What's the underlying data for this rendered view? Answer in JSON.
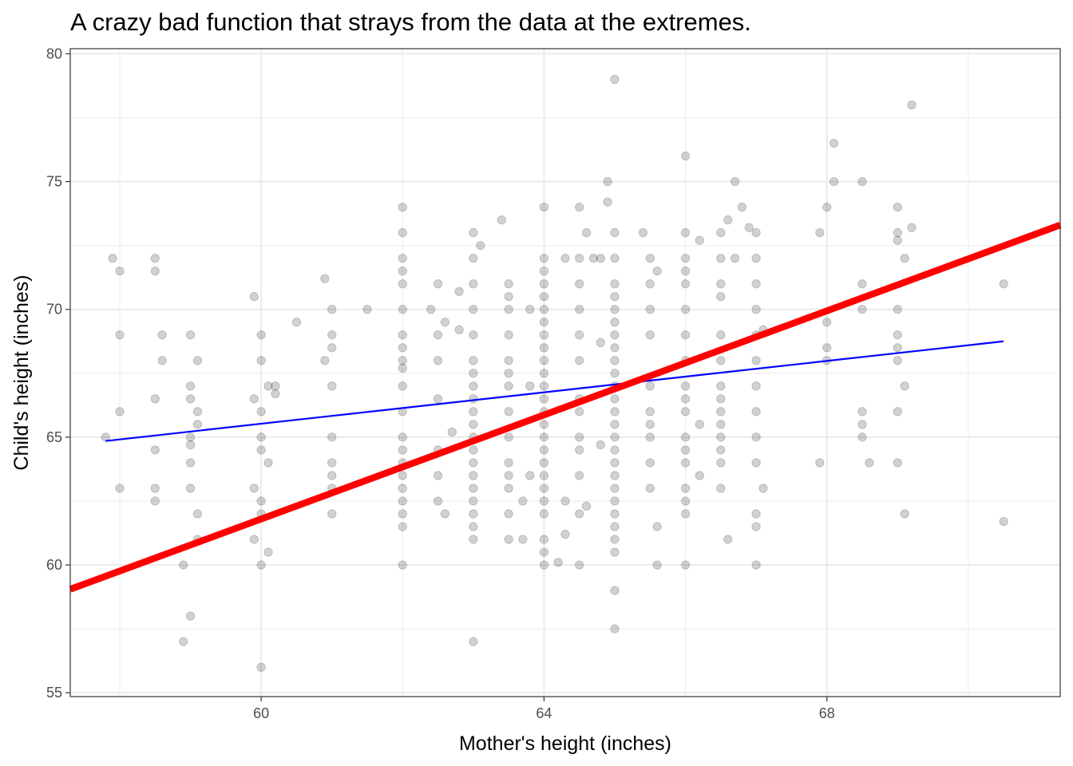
{
  "chart_data": {
    "type": "scatter",
    "title": "A crazy bad function that strays  from the data at the extremes.",
    "xlabel": "Mother's height  (inches)",
    "ylabel": "Child's height (inches)",
    "xlim": [
      57.3,
      71.3
    ],
    "ylim": [
      54.85,
      80.2
    ],
    "x_ticks": [
      60,
      64,
      68
    ],
    "y_ticks": [
      55,
      60,
      65,
      70,
      75,
      80
    ],
    "grid": true,
    "colors": {
      "points": "#000000",
      "fit_line": "#0000ff",
      "bad_line": "#ff0000",
      "grid": "#ebebeb"
    },
    "points": [
      {
        "x": 57.9,
        "y": 72
      },
      {
        "x": 58,
        "y": 71.5
      },
      {
        "x": 58,
        "y": 69
      },
      {
        "x": 58,
        "y": 66
      },
      {
        "x": 57.8,
        "y": 65
      },
      {
        "x": 58,
        "y": 63
      },
      {
        "x": 58.5,
        "y": 72
      },
      {
        "x": 58.5,
        "y": 71.5
      },
      {
        "x": 58.6,
        "y": 69
      },
      {
        "x": 58.6,
        "y": 68
      },
      {
        "x": 58.5,
        "y": 66.5
      },
      {
        "x": 58.5,
        "y": 64.5
      },
      {
        "x": 58.5,
        "y": 63
      },
      {
        "x": 58.5,
        "y": 62.5
      },
      {
        "x": 59,
        "y": 69
      },
      {
        "x": 59.1,
        "y": 68
      },
      {
        "x": 59,
        "y": 67
      },
      {
        "x": 59,
        "y": 66.5
      },
      {
        "x": 59.1,
        "y": 66
      },
      {
        "x": 59.1,
        "y": 65.5
      },
      {
        "x": 59,
        "y": 65
      },
      {
        "x": 59,
        "y": 64.7
      },
      {
        "x": 59,
        "y": 64
      },
      {
        "x": 59,
        "y": 63
      },
      {
        "x": 59.1,
        "y": 62
      },
      {
        "x": 59.1,
        "y": 61
      },
      {
        "x": 58.9,
        "y": 60
      },
      {
        "x": 59,
        "y": 58
      },
      {
        "x": 58.9,
        "y": 57
      },
      {
        "x": 59.9,
        "y": 70.5
      },
      {
        "x": 60,
        "y": 69
      },
      {
        "x": 60,
        "y": 68
      },
      {
        "x": 60.1,
        "y": 67
      },
      {
        "x": 59.9,
        "y": 66.5
      },
      {
        "x": 60,
        "y": 66
      },
      {
        "x": 60,
        "y": 65
      },
      {
        "x": 60,
        "y": 64.5
      },
      {
        "x": 60.1,
        "y": 64
      },
      {
        "x": 59.9,
        "y": 63
      },
      {
        "x": 60,
        "y": 62.5
      },
      {
        "x": 60,
        "y": 62
      },
      {
        "x": 59.9,
        "y": 61
      },
      {
        "x": 60.1,
        "y": 60.5
      },
      {
        "x": 60,
        "y": 60
      },
      {
        "x": 60,
        "y": 56
      },
      {
        "x": 60.2,
        "y": 67
      },
      {
        "x": 60.2,
        "y": 66.7
      },
      {
        "x": 60.5,
        "y": 69.5
      },
      {
        "x": 60.9,
        "y": 71.2
      },
      {
        "x": 61,
        "y": 70
      },
      {
        "x": 61,
        "y": 69
      },
      {
        "x": 61,
        "y": 68.5
      },
      {
        "x": 60.9,
        "y": 68
      },
      {
        "x": 61,
        "y": 67
      },
      {
        "x": 61,
        "y": 65
      },
      {
        "x": 61,
        "y": 64
      },
      {
        "x": 61,
        "y": 63.5
      },
      {
        "x": 61,
        "y": 63
      },
      {
        "x": 61,
        "y": 62
      },
      {
        "x": 61.5,
        "y": 70
      },
      {
        "x": 62,
        "y": 74
      },
      {
        "x": 62,
        "y": 73
      },
      {
        "x": 62,
        "y": 72
      },
      {
        "x": 62,
        "y": 71.5
      },
      {
        "x": 62,
        "y": 71
      },
      {
        "x": 62,
        "y": 70
      },
      {
        "x": 62,
        "y": 69
      },
      {
        "x": 62,
        "y": 68.5
      },
      {
        "x": 62,
        "y": 68
      },
      {
        "x": 62,
        "y": 67.7
      },
      {
        "x": 62,
        "y": 67
      },
      {
        "x": 62,
        "y": 66
      },
      {
        "x": 62,
        "y": 65
      },
      {
        "x": 62,
        "y": 64.5
      },
      {
        "x": 62,
        "y": 64
      },
      {
        "x": 62,
        "y": 63.5
      },
      {
        "x": 62,
        "y": 63
      },
      {
        "x": 62,
        "y": 62.5
      },
      {
        "x": 62,
        "y": 62
      },
      {
        "x": 62,
        "y": 61.5
      },
      {
        "x": 62,
        "y": 60
      },
      {
        "x": 62.4,
        "y": 70
      },
      {
        "x": 62.5,
        "y": 71
      },
      {
        "x": 62.6,
        "y": 69.5
      },
      {
        "x": 62.5,
        "y": 69
      },
      {
        "x": 62.5,
        "y": 68
      },
      {
        "x": 62.5,
        "y": 66.5
      },
      {
        "x": 62.5,
        "y": 64.5
      },
      {
        "x": 62.5,
        "y": 63.5
      },
      {
        "x": 62.5,
        "y": 62.5
      },
      {
        "x": 62.6,
        "y": 62
      },
      {
        "x": 62.7,
        "y": 65.2
      },
      {
        "x": 62.8,
        "y": 69.2
      },
      {
        "x": 62.8,
        "y": 70.7
      },
      {
        "x": 63,
        "y": 73
      },
      {
        "x": 63,
        "y": 72
      },
      {
        "x": 63,
        "y": 71
      },
      {
        "x": 63,
        "y": 70
      },
      {
        "x": 63,
        "y": 69
      },
      {
        "x": 63,
        "y": 68
      },
      {
        "x": 63,
        "y": 67.5
      },
      {
        "x": 63,
        "y": 67
      },
      {
        "x": 63,
        "y": 66.5
      },
      {
        "x": 63,
        "y": 66
      },
      {
        "x": 63,
        "y": 65.5
      },
      {
        "x": 63,
        "y": 65
      },
      {
        "x": 63,
        "y": 64.5
      },
      {
        "x": 63,
        "y": 64
      },
      {
        "x": 63,
        "y": 63.5
      },
      {
        "x": 63,
        "y": 63
      },
      {
        "x": 63,
        "y": 62.5
      },
      {
        "x": 63,
        "y": 62
      },
      {
        "x": 63,
        "y": 61.5
      },
      {
        "x": 63,
        "y": 61
      },
      {
        "x": 63,
        "y": 57
      },
      {
        "x": 63.1,
        "y": 72.5
      },
      {
        "x": 63.4,
        "y": 73.5
      },
      {
        "x": 63.5,
        "y": 71
      },
      {
        "x": 63.5,
        "y": 70.5
      },
      {
        "x": 63.5,
        "y": 70
      },
      {
        "x": 63.5,
        "y": 69
      },
      {
        "x": 63.5,
        "y": 68
      },
      {
        "x": 63.5,
        "y": 67.5
      },
      {
        "x": 63.5,
        "y": 67
      },
      {
        "x": 63.5,
        "y": 66
      },
      {
        "x": 63.5,
        "y": 65
      },
      {
        "x": 63.5,
        "y": 64
      },
      {
        "x": 63.5,
        "y": 63.5
      },
      {
        "x": 63.5,
        "y": 63
      },
      {
        "x": 63.5,
        "y": 62
      },
      {
        "x": 63.5,
        "y": 61
      },
      {
        "x": 63.7,
        "y": 62.5
      },
      {
        "x": 63.7,
        "y": 61
      },
      {
        "x": 63.8,
        "y": 63.5
      },
      {
        "x": 63.8,
        "y": 70
      },
      {
        "x": 63.8,
        "y": 67
      },
      {
        "x": 64,
        "y": 74
      },
      {
        "x": 64,
        "y": 72
      },
      {
        "x": 64,
        "y": 71.5
      },
      {
        "x": 64,
        "y": 71
      },
      {
        "x": 64,
        "y": 70.5
      },
      {
        "x": 64,
        "y": 70
      },
      {
        "x": 64,
        "y": 69.5
      },
      {
        "x": 64,
        "y": 69
      },
      {
        "x": 64,
        "y": 68.5
      },
      {
        "x": 64,
        "y": 68
      },
      {
        "x": 64,
        "y": 67.5
      },
      {
        "x": 64,
        "y": 67
      },
      {
        "x": 64,
        "y": 66.5
      },
      {
        "x": 64,
        "y": 66
      },
      {
        "x": 64,
        "y": 65.5
      },
      {
        "x": 64,
        "y": 65
      },
      {
        "x": 64,
        "y": 64.5
      },
      {
        "x": 64,
        "y": 64
      },
      {
        "x": 64,
        "y": 63.5
      },
      {
        "x": 64,
        "y": 63
      },
      {
        "x": 64,
        "y": 62.5
      },
      {
        "x": 64,
        "y": 62
      },
      {
        "x": 64,
        "y": 61
      },
      {
        "x": 64,
        "y": 60.5
      },
      {
        "x": 64,
        "y": 60
      },
      {
        "x": 64.2,
        "y": 60.1
      },
      {
        "x": 64.3,
        "y": 62.5
      },
      {
        "x": 64.3,
        "y": 61.2
      },
      {
        "x": 64.3,
        "y": 72
      },
      {
        "x": 64.5,
        "y": 74
      },
      {
        "x": 64.5,
        "y": 72
      },
      {
        "x": 64.5,
        "y": 71
      },
      {
        "x": 64.5,
        "y": 70
      },
      {
        "x": 64.5,
        "y": 69
      },
      {
        "x": 64.5,
        "y": 68
      },
      {
        "x": 64.5,
        "y": 66.5
      },
      {
        "x": 64.5,
        "y": 66
      },
      {
        "x": 64.5,
        "y": 65
      },
      {
        "x": 64.5,
        "y": 64.5
      },
      {
        "x": 64.5,
        "y": 63.5
      },
      {
        "x": 64.5,
        "y": 62
      },
      {
        "x": 64.5,
        "y": 60
      },
      {
        "x": 64.6,
        "y": 73
      },
      {
        "x": 64.6,
        "y": 62.3
      },
      {
        "x": 64.7,
        "y": 72
      },
      {
        "x": 64.8,
        "y": 72
      },
      {
        "x": 64.8,
        "y": 68.7
      },
      {
        "x": 64.8,
        "y": 64.7
      },
      {
        "x": 64.9,
        "y": 74.2
      },
      {
        "x": 65,
        "y": 79
      },
      {
        "x": 65,
        "y": 73
      },
      {
        "x": 65,
        "y": 72
      },
      {
        "x": 65,
        "y": 71
      },
      {
        "x": 65,
        "y": 70.5
      },
      {
        "x": 65,
        "y": 70
      },
      {
        "x": 65,
        "y": 69.5
      },
      {
        "x": 65,
        "y": 69
      },
      {
        "x": 65,
        "y": 68.5
      },
      {
        "x": 65,
        "y": 68
      },
      {
        "x": 65,
        "y": 67.5
      },
      {
        "x": 65,
        "y": 67
      },
      {
        "x": 65,
        "y": 66.5
      },
      {
        "x": 65,
        "y": 66
      },
      {
        "x": 65,
        "y": 65.5
      },
      {
        "x": 65,
        "y": 65
      },
      {
        "x": 65,
        "y": 64.5
      },
      {
        "x": 65,
        "y": 64
      },
      {
        "x": 65,
        "y": 63.5
      },
      {
        "x": 65,
        "y": 63
      },
      {
        "x": 65,
        "y": 62.5
      },
      {
        "x": 65,
        "y": 62
      },
      {
        "x": 65,
        "y": 61.5
      },
      {
        "x": 65,
        "y": 61
      },
      {
        "x": 65,
        "y": 60.5
      },
      {
        "x": 65,
        "y": 59
      },
      {
        "x": 65,
        "y": 57.5
      },
      {
        "x": 64.9,
        "y": 75
      },
      {
        "x": 65.4,
        "y": 73
      },
      {
        "x": 65.5,
        "y": 72
      },
      {
        "x": 65.5,
        "y": 71
      },
      {
        "x": 65.5,
        "y": 70
      },
      {
        "x": 65.5,
        "y": 69
      },
      {
        "x": 65.5,
        "y": 67
      },
      {
        "x": 65.5,
        "y": 66
      },
      {
        "x": 65.5,
        "y": 65.5
      },
      {
        "x": 65.5,
        "y": 65
      },
      {
        "x": 65.5,
        "y": 64
      },
      {
        "x": 65.5,
        "y": 63
      },
      {
        "x": 65.6,
        "y": 61.5
      },
      {
        "x": 65.6,
        "y": 60
      },
      {
        "x": 65.6,
        "y": 71.5
      },
      {
        "x": 66,
        "y": 76
      },
      {
        "x": 66,
        "y": 73
      },
      {
        "x": 66,
        "y": 72
      },
      {
        "x": 66,
        "y": 71.5
      },
      {
        "x": 66,
        "y": 71
      },
      {
        "x": 66,
        "y": 70
      },
      {
        "x": 66,
        "y": 69
      },
      {
        "x": 66,
        "y": 68
      },
      {
        "x": 66,
        "y": 67
      },
      {
        "x": 66,
        "y": 66.5
      },
      {
        "x": 66,
        "y": 66
      },
      {
        "x": 66,
        "y": 65
      },
      {
        "x": 66,
        "y": 64.5
      },
      {
        "x": 66,
        "y": 64
      },
      {
        "x": 66,
        "y": 63
      },
      {
        "x": 66,
        "y": 62.5
      },
      {
        "x": 66,
        "y": 62
      },
      {
        "x": 66,
        "y": 60
      },
      {
        "x": 66.2,
        "y": 72.7
      },
      {
        "x": 66.2,
        "y": 65.5
      },
      {
        "x": 66.2,
        "y": 63.5
      },
      {
        "x": 66.5,
        "y": 73
      },
      {
        "x": 66.5,
        "y": 72
      },
      {
        "x": 66.5,
        "y": 71
      },
      {
        "x": 66.5,
        "y": 70.5
      },
      {
        "x": 66.5,
        "y": 69
      },
      {
        "x": 66.5,
        "y": 68
      },
      {
        "x": 66.5,
        "y": 67
      },
      {
        "x": 66.5,
        "y": 66.5
      },
      {
        "x": 66.5,
        "y": 66
      },
      {
        "x": 66.5,
        "y": 65.5
      },
      {
        "x": 66.5,
        "y": 65
      },
      {
        "x": 66.5,
        "y": 64.5
      },
      {
        "x": 66.5,
        "y": 64
      },
      {
        "x": 66.5,
        "y": 63
      },
      {
        "x": 66.6,
        "y": 73.5
      },
      {
        "x": 66.6,
        "y": 61
      },
      {
        "x": 66.7,
        "y": 75
      },
      {
        "x": 66.7,
        "y": 72
      },
      {
        "x": 66.8,
        "y": 74
      },
      {
        "x": 67,
        "y": 73
      },
      {
        "x": 67,
        "y": 72
      },
      {
        "x": 67,
        "y": 71
      },
      {
        "x": 67,
        "y": 70
      },
      {
        "x": 67,
        "y": 69
      },
      {
        "x": 67,
        "y": 68
      },
      {
        "x": 67,
        "y": 67
      },
      {
        "x": 67,
        "y": 66
      },
      {
        "x": 67,
        "y": 65
      },
      {
        "x": 67,
        "y": 64
      },
      {
        "x": 67,
        "y": 62
      },
      {
        "x": 67,
        "y": 61.5
      },
      {
        "x": 67,
        "y": 60
      },
      {
        "x": 67.1,
        "y": 69.2
      },
      {
        "x": 67.1,
        "y": 63
      },
      {
        "x": 66.9,
        "y": 73.2
      },
      {
        "x": 67.9,
        "y": 73
      },
      {
        "x": 68,
        "y": 74
      },
      {
        "x": 68,
        "y": 69.5
      },
      {
        "x": 68,
        "y": 68.5
      },
      {
        "x": 68,
        "y": 68
      },
      {
        "x": 67.9,
        "y": 64
      },
      {
        "x": 68.1,
        "y": 76.5
      },
      {
        "x": 68.1,
        "y": 75
      },
      {
        "x": 68.5,
        "y": 75
      },
      {
        "x": 68.5,
        "y": 71
      },
      {
        "x": 68.5,
        "y": 70
      },
      {
        "x": 68.5,
        "y": 66
      },
      {
        "x": 68.5,
        "y": 65.5
      },
      {
        "x": 68.5,
        "y": 65
      },
      {
        "x": 68.6,
        "y": 64
      },
      {
        "x": 69,
        "y": 74
      },
      {
        "x": 69,
        "y": 73
      },
      {
        "x": 69,
        "y": 72.7
      },
      {
        "x": 69,
        "y": 70
      },
      {
        "x": 69,
        "y": 69
      },
      {
        "x": 69,
        "y": 68.5
      },
      {
        "x": 69,
        "y": 68
      },
      {
        "x": 69,
        "y": 66
      },
      {
        "x": 69,
        "y": 64
      },
      {
        "x": 69.1,
        "y": 72
      },
      {
        "x": 69.1,
        "y": 67
      },
      {
        "x": 69.1,
        "y": 62
      },
      {
        "x": 69.2,
        "y": 78
      },
      {
        "x": 69.2,
        "y": 73.2
      },
      {
        "x": 70.5,
        "y": 71
      },
      {
        "x": 70.5,
        "y": 61.7
      }
    ],
    "series": [
      {
        "kind": "line",
        "color": "#0000ff",
        "x": [
          57.8,
          70.5
        ],
        "y": [
          64.85,
          68.75
        ]
      },
      {
        "kind": "line",
        "color": "#ff0000",
        "x": [
          57.3,
          71.3
        ],
        "y": [
          59.05,
          73.3
        ]
      }
    ]
  }
}
